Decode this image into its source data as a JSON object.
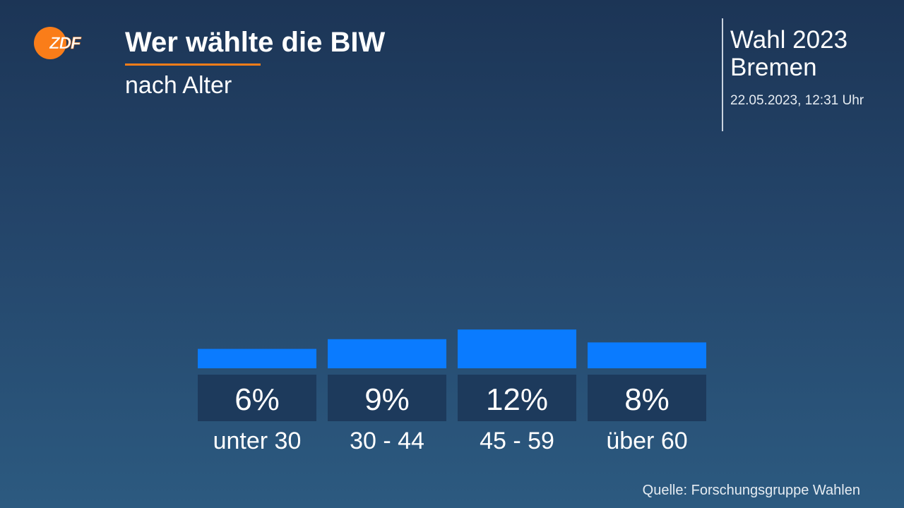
{
  "header": {
    "logo_text": "ZDF",
    "title": "Wer wählte die BIW",
    "subtitle": "nach Alter"
  },
  "info": {
    "election": "Wahl 2023",
    "region": "Bremen",
    "timestamp": "22.05.2023, 12:31 Uhr"
  },
  "footer": {
    "source": "Quelle: Forschungsgruppe Wahlen"
  },
  "colors": {
    "bar": "#0a7bff",
    "label_box": "#1d3a5c",
    "accent": "#fa7d19"
  },
  "chart_data": {
    "type": "bar",
    "title": "Wer wählte die BIW",
    "subtitle": "nach Alter",
    "categories": [
      "unter 30",
      "30 - 44",
      "45 - 59",
      "über 60"
    ],
    "values": [
      6,
      9,
      12,
      8
    ],
    "value_labels": [
      "6%",
      "9%",
      "12%",
      "8%"
    ],
    "unit": "%",
    "xlabel": "",
    "ylabel": "",
    "ylim": [
      0,
      12
    ],
    "grid": false
  }
}
